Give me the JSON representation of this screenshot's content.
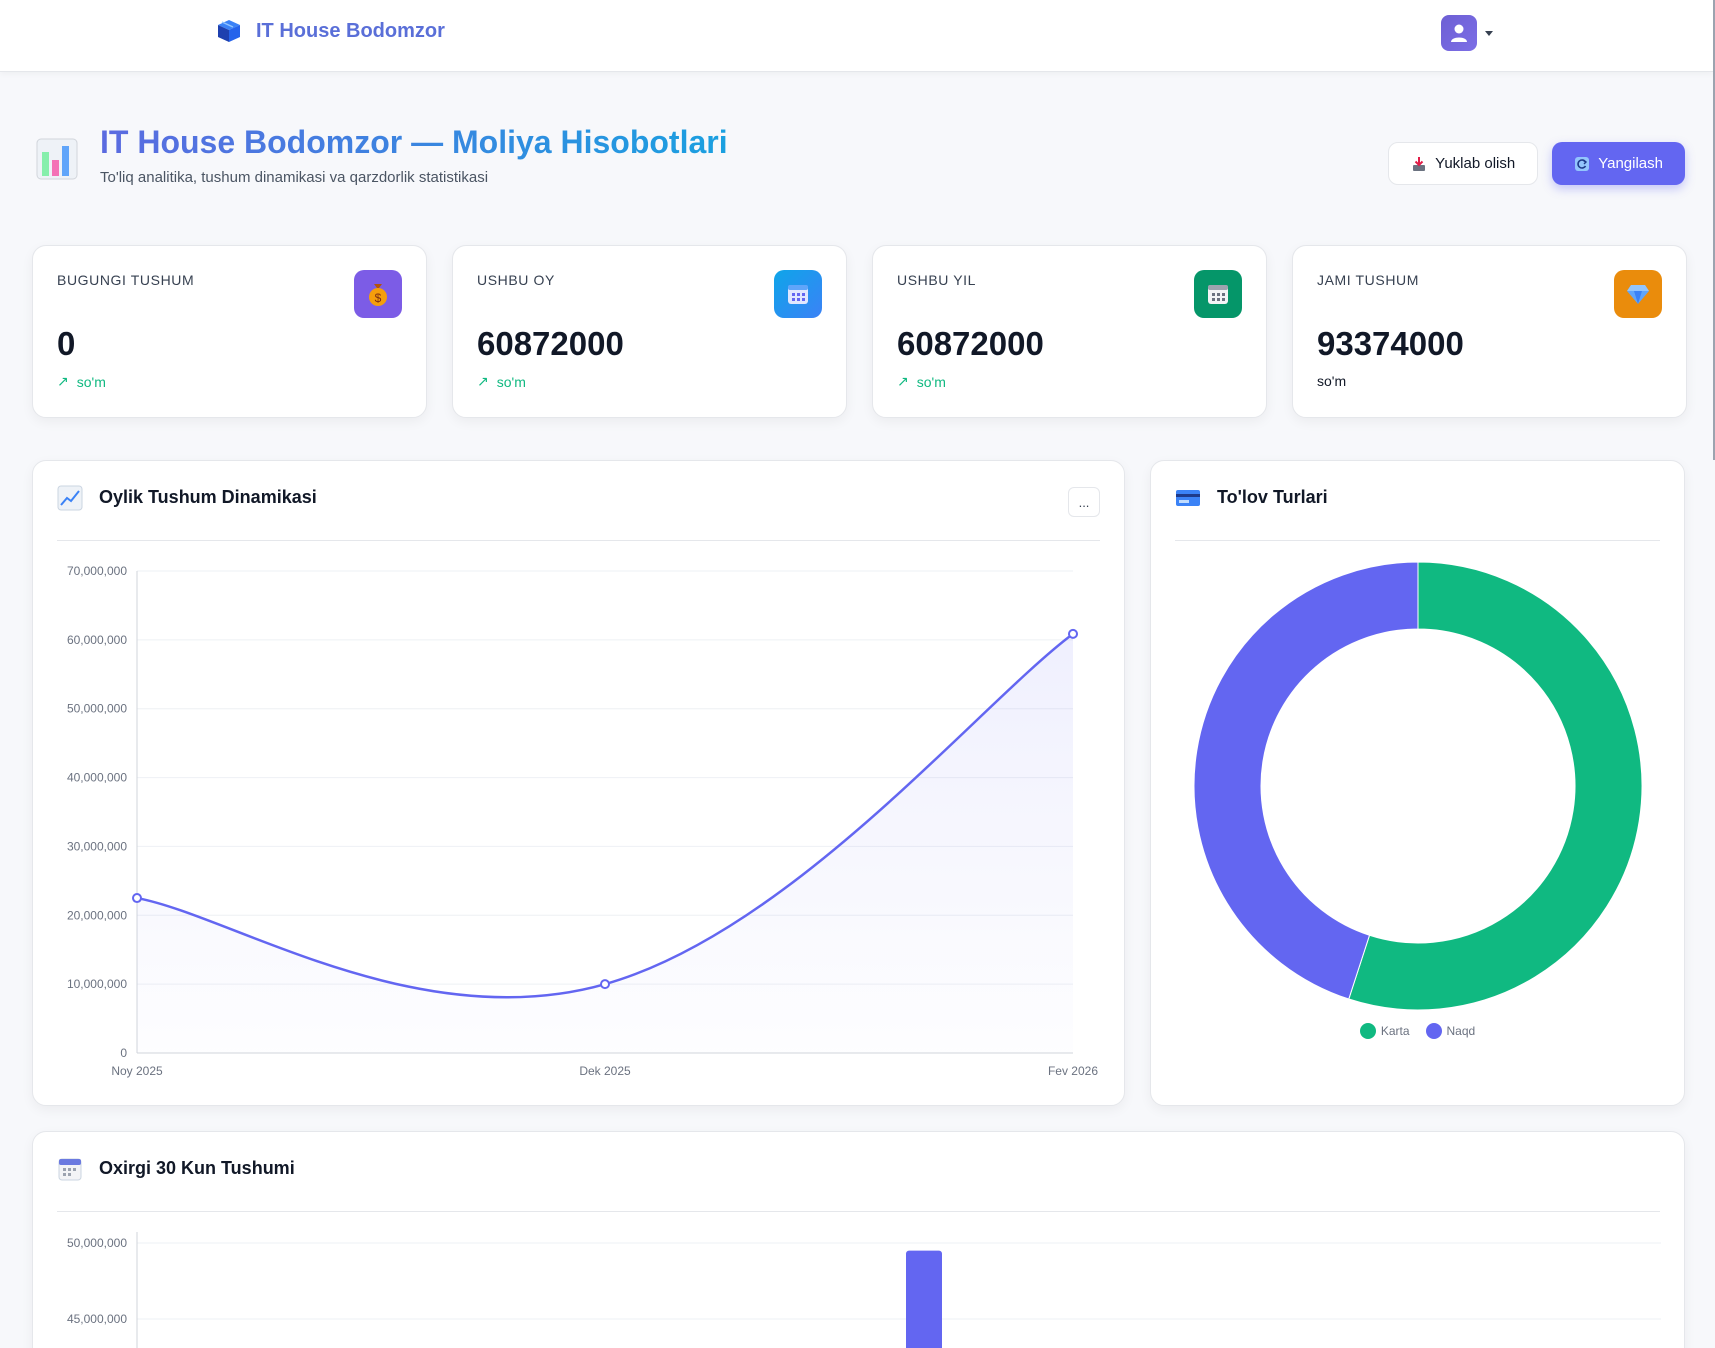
{
  "navbar": {
    "brand_name": "IT House Bodomzor",
    "brand_icon": "cube-icon",
    "user_icon": "user-icon"
  },
  "header": {
    "title": "IT House Bodomzor — Moliya Hisobotlari",
    "subtitle": "To'liq analitika, tushum dinamikasi va qarzdorlik statistikasi",
    "download_label": "Yuklab olish",
    "refresh_label": "Yangilash"
  },
  "stats": [
    {
      "label": "BUGUNGI TUSHUM",
      "value": "0",
      "unit": "so'm",
      "arrow": "↗",
      "icon": "money-bag-icon",
      "color": "#7c5ce6"
    },
    {
      "label": "USHBU OY",
      "value": "60872000",
      "unit": "so'm",
      "arrow": "↗",
      "icon": "calendar-icon",
      "color": "#2563eb"
    },
    {
      "label": "USHBU YIL",
      "value": "60872000",
      "unit": "so'm",
      "arrow": "↗",
      "icon": "calendar-icon",
      "color": "#059669"
    },
    {
      "label": "JAMI TUSHUM",
      "value": "93374000",
      "unit": "so'm",
      "arrow": "",
      "icon": "diamond-icon",
      "color": "#ea8c0c"
    }
  ],
  "monthly_card": {
    "title": "Oylik Tushum Dinamikasi",
    "more_label": "..."
  },
  "payment_card": {
    "title": "To'lov Turlari"
  },
  "days_card": {
    "title": "Oxirgi 30 Kun Tushumi"
  },
  "chart_data": [
    {
      "type": "line",
      "title": "Oylik Tushum Dinamikasi",
      "x": [
        "Noy 2025",
        "Dek 2025",
        "Fev 2026"
      ],
      "series": [
        {
          "values": [
            22502000,
            10000000,
            60872000
          ],
          "color": "#6366f1"
        }
      ],
      "ylim": [
        0,
        70000000
      ],
      "yticks": [
        "0",
        "10,000,000",
        "20,000,000",
        "30,000,000",
        "40,000,000",
        "50,000,000",
        "60,000,000",
        "70,000,000"
      ],
      "grid": true
    },
    {
      "type": "pie",
      "title": "To'lov Turlari",
      "labels": [
        "Karta",
        "Naqd"
      ],
      "values": [
        55,
        45
      ],
      "colors": [
        "#10b981",
        "#6366f1"
      ],
      "legend": "bottom"
    },
    {
      "type": "bar",
      "title": "Oxirgi 30 Kun Tushumi",
      "visible_yticks": [
        "50,000,000",
        "45,000,000"
      ],
      "bars": [
        {
          "value": 49500000,
          "color": "#6366f1"
        }
      ]
    }
  ]
}
